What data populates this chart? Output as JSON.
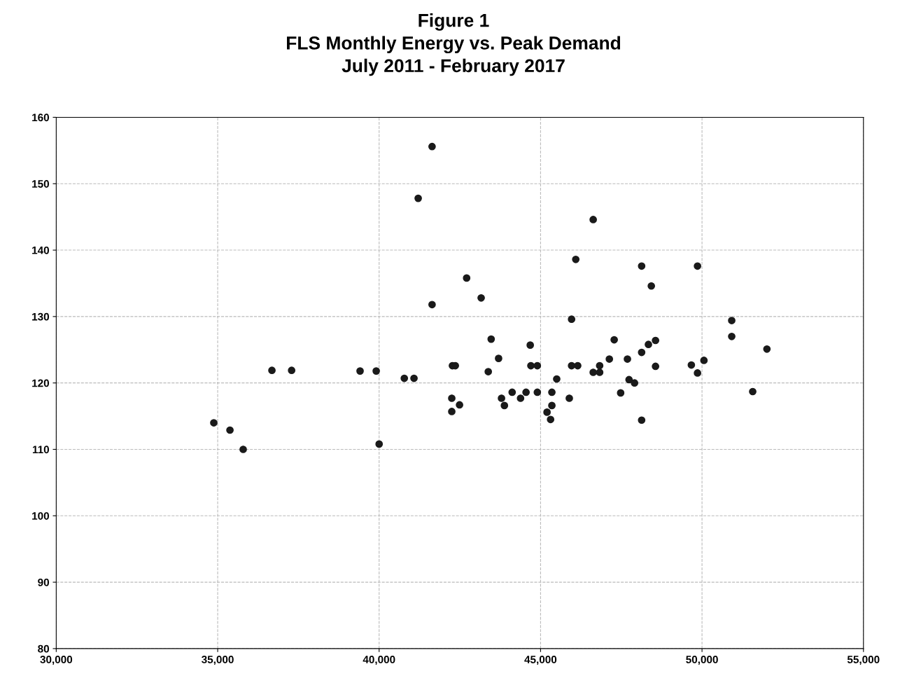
{
  "chart_data": {
    "type": "scatter",
    "title": "Figure 1\nFLS Monthly Energy vs. Peak Demand\nJuly 2011 - February 2017",
    "x": [
      34880,
      35380,
      35790,
      36680,
      37290,
      39410,
      39910,
      40000,
      40780,
      41080,
      41640,
      41210,
      41640,
      42270,
      42360,
      42250,
      42250,
      42490,
      42710,
      43160,
      43470,
      43380,
      43700,
      43790,
      43880,
      44120,
      44380,
      44550,
      44680,
      44700,
      44900,
      44900,
      45200,
      45310,
      45350,
      45350,
      45500,
      45890,
      45960,
      45960,
      46090,
      46150,
      46630,
      46630,
      46830,
      46830,
      47130,
      47280,
      47480,
      47690,
      47740,
      47910,
      48130,
      48130,
      48130,
      48340,
      48430,
      48560,
      48560,
      49670,
      49860,
      49860,
      50060,
      50920,
      50920,
      51570,
      52010
    ],
    "series": [
      {
        "color": "#1a1a1a",
        "values": [
          114.0,
          112.9,
          110.0,
          121.9,
          121.9,
          121.8,
          121.8,
          110.8,
          120.7,
          120.7,
          155.6,
          147.8,
          131.8,
          122.6,
          122.6,
          117.7,
          115.7,
          116.7,
          135.8,
          132.8,
          126.6,
          121.7,
          123.7,
          117.7,
          116.6,
          118.6,
          117.7,
          118.6,
          125.7,
          122.6,
          122.6,
          118.6,
          115.6,
          114.5,
          116.6,
          118.6,
          120.6,
          117.7,
          129.6,
          122.6,
          138.6,
          122.6,
          144.6,
          121.6,
          122.6,
          121.6,
          123.6,
          126.5,
          118.5,
          123.6,
          120.5,
          120.0,
          137.6,
          124.6,
          114.4,
          125.8,
          134.6,
          126.4,
          122.5,
          122.7,
          137.6,
          121.5,
          123.4,
          129.4,
          127.0,
          118.7,
          125.1
        ]
      }
    ],
    "xlim": [
      30000,
      55000
    ],
    "ylim": [
      80,
      160
    ],
    "xticks": [
      {
        "value": 30000,
        "label": "30,000"
      },
      {
        "value": 35000,
        "label": "35,000"
      },
      {
        "value": 40000,
        "label": "40,000"
      },
      {
        "value": 45000,
        "label": "45,000"
      },
      {
        "value": 50000,
        "label": "50,000"
      },
      {
        "value": 55000,
        "label": "55,000"
      }
    ],
    "yticks": [
      80,
      90,
      100,
      110,
      120,
      130,
      140,
      150,
      160
    ],
    "grid": true,
    "marker": "circle"
  }
}
